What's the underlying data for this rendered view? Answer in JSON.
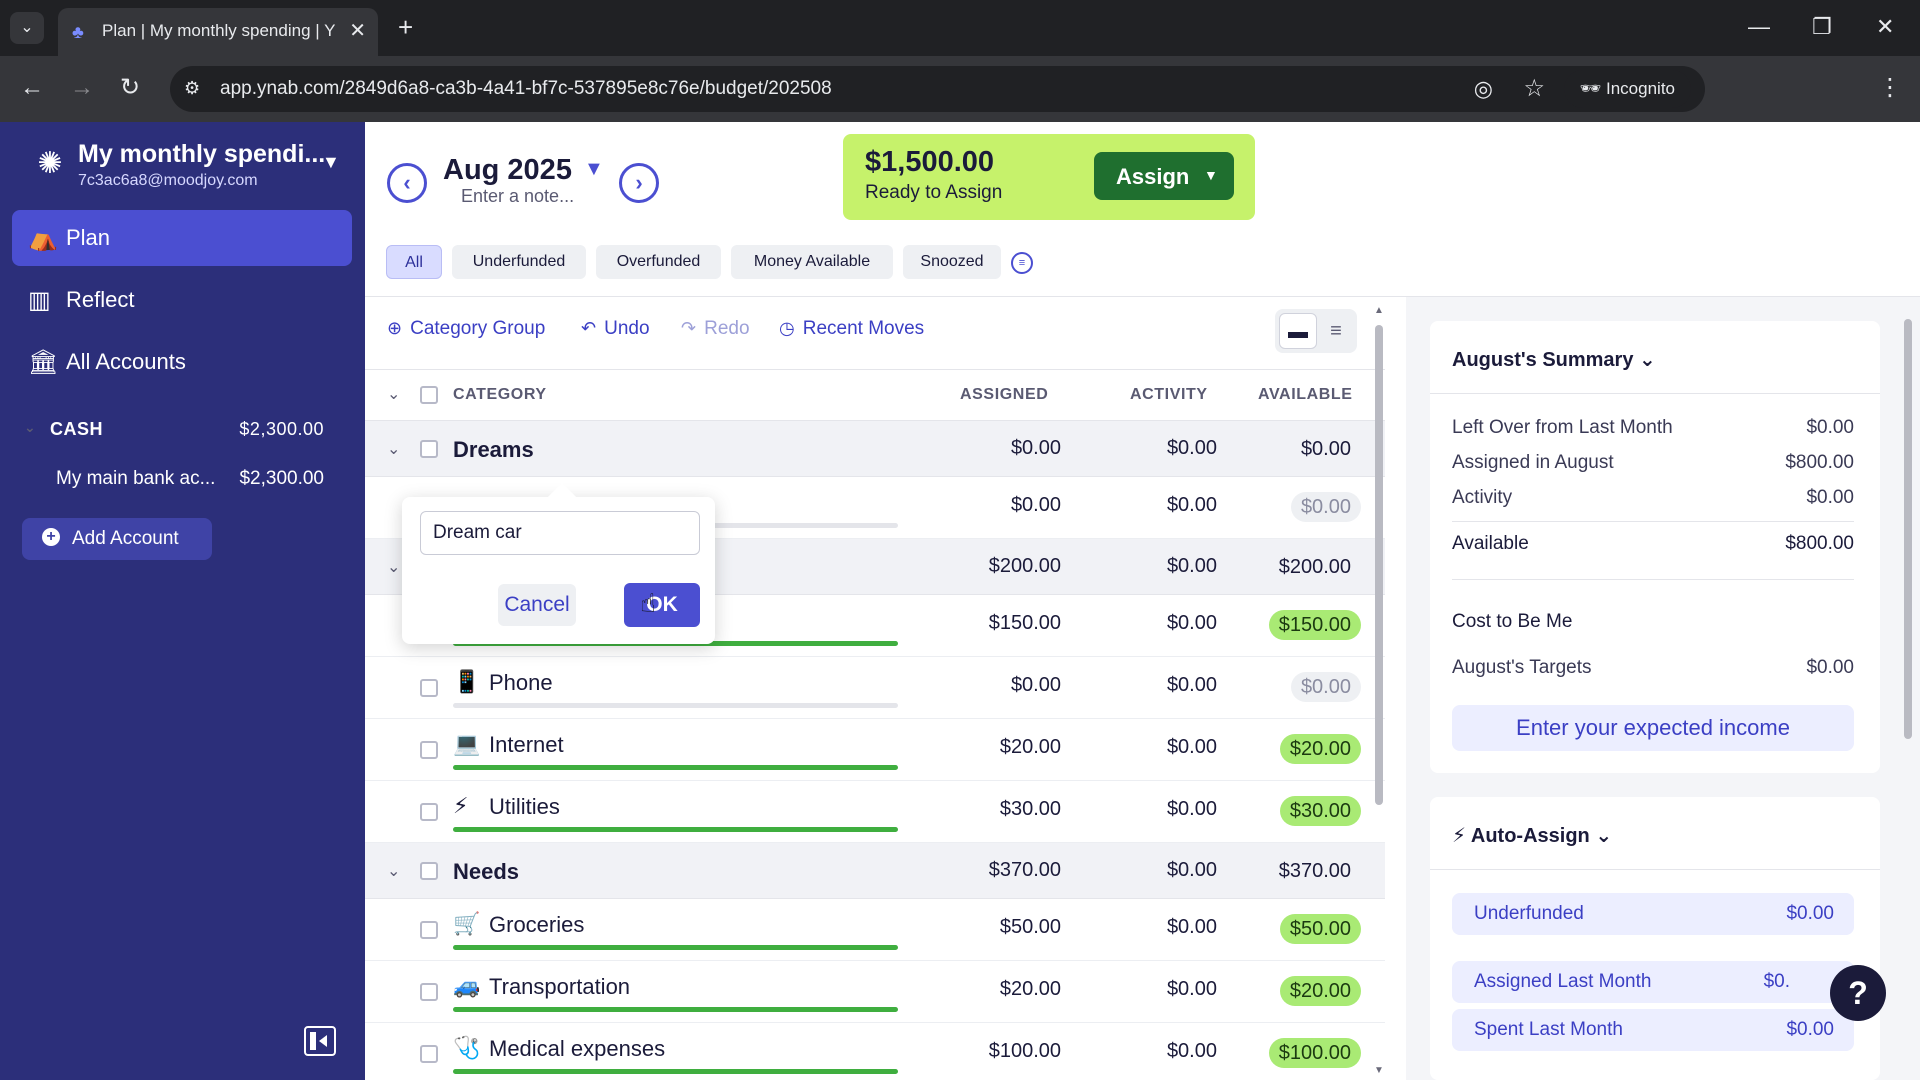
{
  "browser": {
    "tab_title": "Plan | My monthly spending | Y",
    "url": "app.ynab.com/2849d6a8-ca3b-4a41-bf7c-537895e8c76e/budget/202508",
    "incognito_label": "Incognito"
  },
  "sidebar": {
    "budget_name": "My monthly spendi...",
    "email": "7c3ac6a8@moodjoy.com",
    "nav": [
      {
        "label": "Plan",
        "icon": "plan-icon"
      },
      {
        "label": "Reflect",
        "icon": "bar-chart-icon"
      },
      {
        "label": "All Accounts",
        "icon": "bank-icon"
      }
    ],
    "cash_group": {
      "label": "CASH",
      "amount": "$2,300.00"
    },
    "accounts": [
      {
        "name": "My main bank ac...",
        "amount": "$2,300.00"
      }
    ],
    "add_account_label": "Add Account"
  },
  "header": {
    "month": "Aug 2025",
    "note_placeholder": "Enter a note...",
    "ready_amount": "$1,500.00",
    "ready_label": "Ready to Assign",
    "assign_label": "Assign",
    "filters": [
      "All",
      "Underfunded",
      "Overfunded",
      "Money Available",
      "Snoozed"
    ],
    "active_filter": "All"
  },
  "toolbar": {
    "category_group": "Category Group",
    "undo": "Undo",
    "redo": "Redo",
    "recent_moves": "Recent Moves"
  },
  "table": {
    "columns": {
      "category": "CATEGORY",
      "assigned": "ASSIGNED",
      "activity": "ACTIVITY",
      "available": "AVAILABLE"
    },
    "rows": [
      {
        "type": "group",
        "name": "Dreams",
        "assigned": "$0.00",
        "activity": "$0.00",
        "available": "$0.00"
      },
      {
        "type": "category",
        "name": "",
        "icon": "",
        "assigned": "$0.00",
        "activity": "$0.00",
        "available": "$0.00",
        "progress": 0
      },
      {
        "type": "group",
        "name": "",
        "assigned": "$200.00",
        "activity": "$0.00",
        "available": "$200.00"
      },
      {
        "type": "category",
        "name": "",
        "icon": "",
        "assigned": "$150.00",
        "activity": "$0.00",
        "available": "$150.00",
        "progress": 1
      },
      {
        "type": "category",
        "name": "Phone",
        "icon": "📱",
        "assigned": "$0.00",
        "activity": "$0.00",
        "available": "$0.00",
        "progress": 0
      },
      {
        "type": "category",
        "name": "Internet",
        "icon": "💻",
        "assigned": "$20.00",
        "activity": "$0.00",
        "available": "$20.00",
        "progress": 1
      },
      {
        "type": "category",
        "name": "Utilities",
        "icon": "⚡",
        "assigned": "$30.00",
        "activity": "$0.00",
        "available": "$30.00",
        "progress": 1
      },
      {
        "type": "group",
        "name": "Needs",
        "assigned": "$370.00",
        "activity": "$0.00",
        "available": "$370.00"
      },
      {
        "type": "category",
        "name": "Groceries",
        "icon": "🛒",
        "assigned": "$50.00",
        "activity": "$0.00",
        "available": "$50.00",
        "progress": 1
      },
      {
        "type": "category",
        "name": "Transportation",
        "icon": "🚙",
        "assigned": "$20.00",
        "activity": "$0.00",
        "available": "$20.00",
        "progress": 1
      },
      {
        "type": "category",
        "name": "Medical expenses",
        "icon": "🩺",
        "assigned": "$100.00",
        "activity": "$0.00",
        "available": "$100.00",
        "progress": 1
      }
    ]
  },
  "rename_popover": {
    "input_value": "Dream car",
    "cancel_label": "Cancel",
    "ok_label": "OK"
  },
  "summary": {
    "title": "August's Summary",
    "rows": [
      {
        "label": "Left Over from Last Month",
        "value": "$0.00"
      },
      {
        "label": "Assigned in August",
        "value": "$800.00"
      },
      {
        "label": "Activity",
        "value": "$0.00"
      }
    ],
    "available": {
      "label": "Available",
      "value": "$800.00"
    },
    "cost_to_be_me": "Cost to Be Me",
    "targets": {
      "label": "August's Targets",
      "value": "$0.00"
    },
    "income_button": "Enter your expected income"
  },
  "auto_assign": {
    "title": "Auto-Assign",
    "items": [
      {
        "label": "Underfunded",
        "value": "$0.00"
      },
      {
        "label": "Assigned Last Month",
        "value": "$0."
      },
      {
        "label": "Spent Last Month",
        "value": "$0.00"
      }
    ]
  },
  "colors": {
    "sidebar_bg": "#2c2f7a",
    "accent": "#4b4fd1",
    "ready_to_assign_bg": "#c6f26b",
    "funded_pill": "#a9ea74",
    "progress_green": "#3fae3f"
  }
}
